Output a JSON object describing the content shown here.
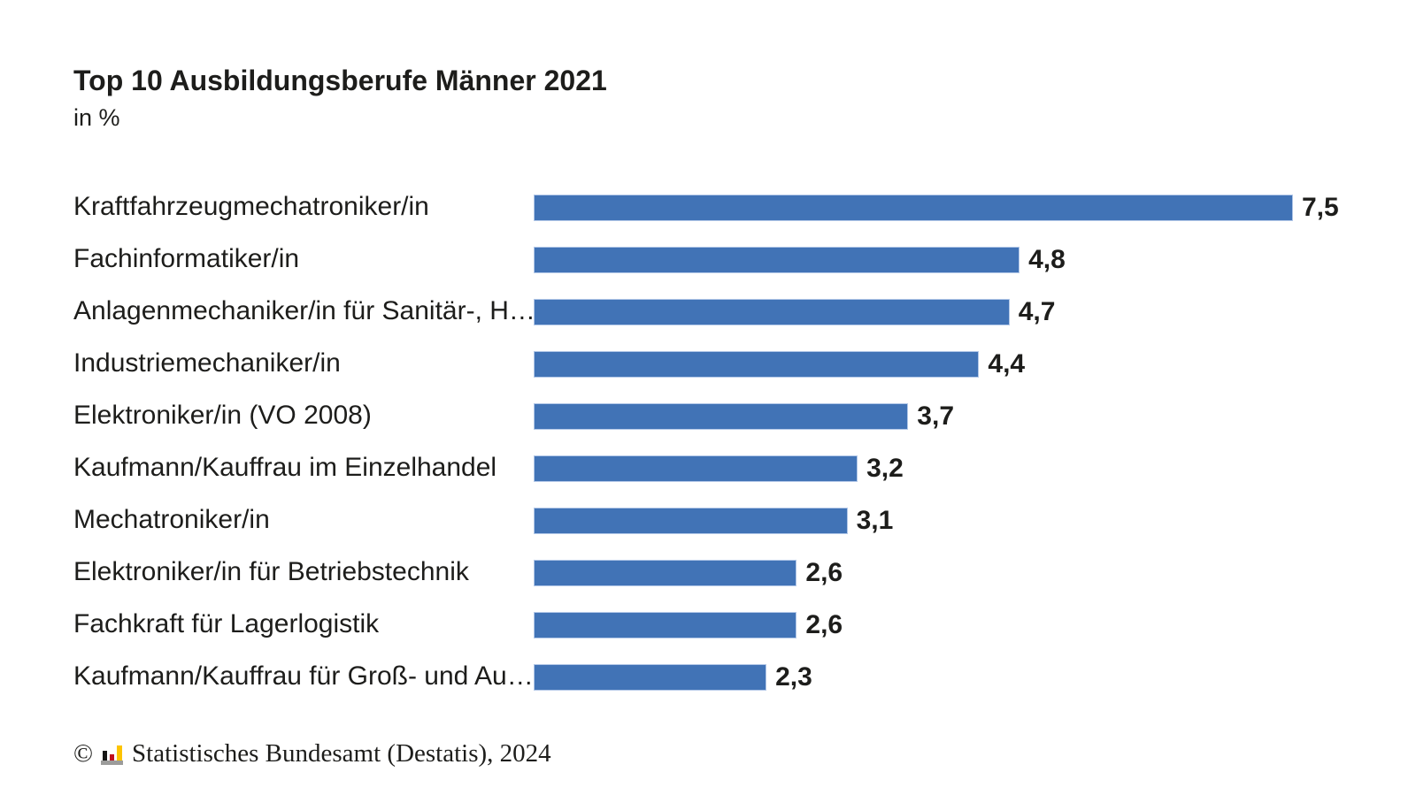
{
  "chart": {
    "title": "Top 10 Ausbildungsberufe Männer 2021",
    "subtitle": "in %"
  },
  "chart_data": {
    "type": "bar",
    "orientation": "horizontal",
    "title": "Top 10 Ausbildungsberufe Männer 2021",
    "subtitle": "in %",
    "categories": [
      "Kraftfahrzeugmechatroniker/in",
      "Fachinformatiker/in",
      "Anlagenmechaniker/in für Sanitär-, H…",
      "Industriemechaniker/in",
      "Elektroniker/in (VO 2008)",
      "Kaufmann/Kauffrau im Einzelhandel",
      "Mechatroniker/in",
      "Elektroniker/in für Betriebstechnik",
      "Fachkraft für Lagerlogistik",
      "Kaufmann/Kauffrau für Groß- und Au…"
    ],
    "values": [
      7.5,
      4.8,
      4.7,
      4.4,
      3.7,
      3.2,
      3.1,
      2.6,
      2.6,
      2.3
    ],
    "value_labels": [
      "7,5",
      "4,8",
      "4,7",
      "4,4",
      "3,7",
      "3,2",
      "3,1",
      "2,6",
      "2,6",
      "2,3"
    ],
    "xlabel": "",
    "ylabel": "",
    "xlim": [
      0,
      7.5
    ],
    "grid": false,
    "legend": false,
    "bar_color": "#4173b6",
    "bar_border_color": "#b3c8e8",
    "value_label_position": "outside-end"
  },
  "footer": {
    "copyright": "©",
    "source": "Statistisches Bundesamt (Destatis), 2024",
    "logo_colors": {
      "black": "#161615",
      "red": "#c00d1e",
      "gold": "#fdc400",
      "gray": "#9c9c9b"
    }
  },
  "layout_hints": {
    "text_color": "#1d1d1b",
    "background": "#ffffff"
  }
}
